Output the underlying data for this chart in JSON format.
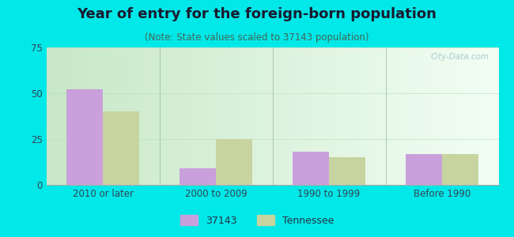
{
  "title": "Year of entry for the foreign-born population",
  "subtitle": "(Note: State values scaled to 37143 population)",
  "categories": [
    "2010 or later",
    "2000 to 2009",
    "1990 to 1999",
    "Before 1990"
  ],
  "values_37143": [
    52,
    9,
    18,
    17
  ],
  "values_tennessee": [
    40,
    25,
    15,
    17
  ],
  "bar_color_37143": "#c9a0dc",
  "bar_color_tennessee": "#c8d4a0",
  "background_outer": "#00e8e8",
  "ylim": [
    0,
    75
  ],
  "yticks": [
    0,
    25,
    50,
    75
  ],
  "legend_label_1": "37143",
  "legend_label_2": "Tennessee",
  "bar_width": 0.32,
  "title_fontsize": 13,
  "subtitle_fontsize": 8.5,
  "tick_fontsize": 8.5,
  "legend_fontsize": 9,
  "watermark": "City-Data.com",
  "grad_left": "#c8e8c8",
  "grad_right": "#eef8f0"
}
